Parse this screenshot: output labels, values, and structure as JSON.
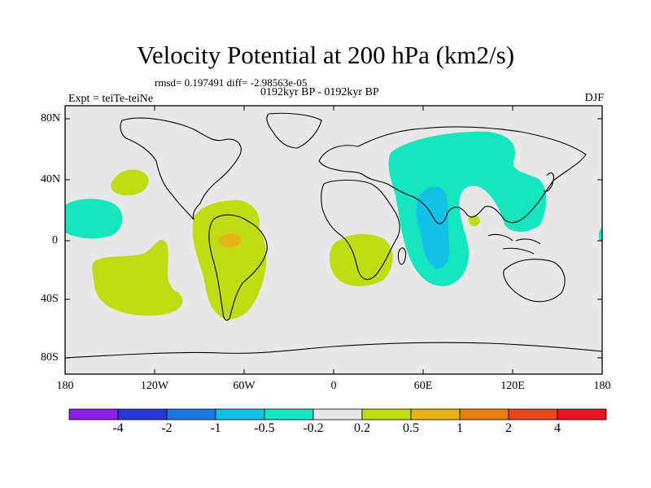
{
  "title": "Velocity Potential at 200 hPa (km2/s)",
  "subtitle_stats": "rmsd= 0.197491 diff= -2.98563e-05",
  "subtitle_period": "0192kyr BP - 0192kyr BP",
  "left_label": "Expt = teiTe-teiNe",
  "right_label": "DJF",
  "lat_labels": [
    "80N",
    "40N",
    "0",
    "40S",
    "80S"
  ],
  "lon_labels": [
    "180",
    "120W",
    "60W",
    "0",
    "60E",
    "120E",
    "180"
  ],
  "colorbar": {
    "colors": [
      "#8a1ee6",
      "#2a37d6",
      "#1a78e0",
      "#14c0e6",
      "#14e6c0",
      "#e8e8e8",
      "#c0dc14",
      "#e6b414",
      "#e68014",
      "#e6461e",
      "#e6141e"
    ],
    "labels": [
      "-4",
      "-2",
      "-1",
      "-0.5",
      "-0.2",
      "0.2",
      "0.5",
      "1",
      "2",
      "4"
    ]
  },
  "chart_data": {
    "type": "heatmap",
    "title": "Velocity Potential at 200 hPa (km2/s)",
    "projection": "cylindrical equidistant",
    "lon_range": [
      -180,
      180
    ],
    "lat_range": [
      -90,
      90
    ],
    "background_level": "-0.2 to 0.2",
    "regions": [
      {
        "name": "Asian monsoon / Indian Ocean",
        "level": "-0.5 to -0.2",
        "color": "#14e6c0"
      },
      {
        "name": "Arabian Sea / Indian Ocean core",
        "level": "-1 to -0.5",
        "color": "#14c0e6"
      },
      {
        "name": "North Pacific east",
        "level": "-0.5 to -0.2",
        "color": "#14e6c0"
      },
      {
        "name": "North Pacific",
        "level": "0.2 to 0.5",
        "color": "#c0dc14"
      },
      {
        "name": "South Pacific",
        "level": "0.2 to 0.5",
        "color": "#c0dc14"
      },
      {
        "name": "South America / Atlantic",
        "level": "0.2 to 0.5",
        "color": "#c0dc14"
      },
      {
        "name": "Amazon",
        "level": "0.5 to 1",
        "color": "#e6b414"
      },
      {
        "name": "Southern Africa",
        "level": "0.2 to 0.5",
        "color": "#c0dc14"
      },
      {
        "name": "Bay of Bengal",
        "level": "0.2 to 0.5",
        "color": "#c0dc14"
      }
    ]
  }
}
